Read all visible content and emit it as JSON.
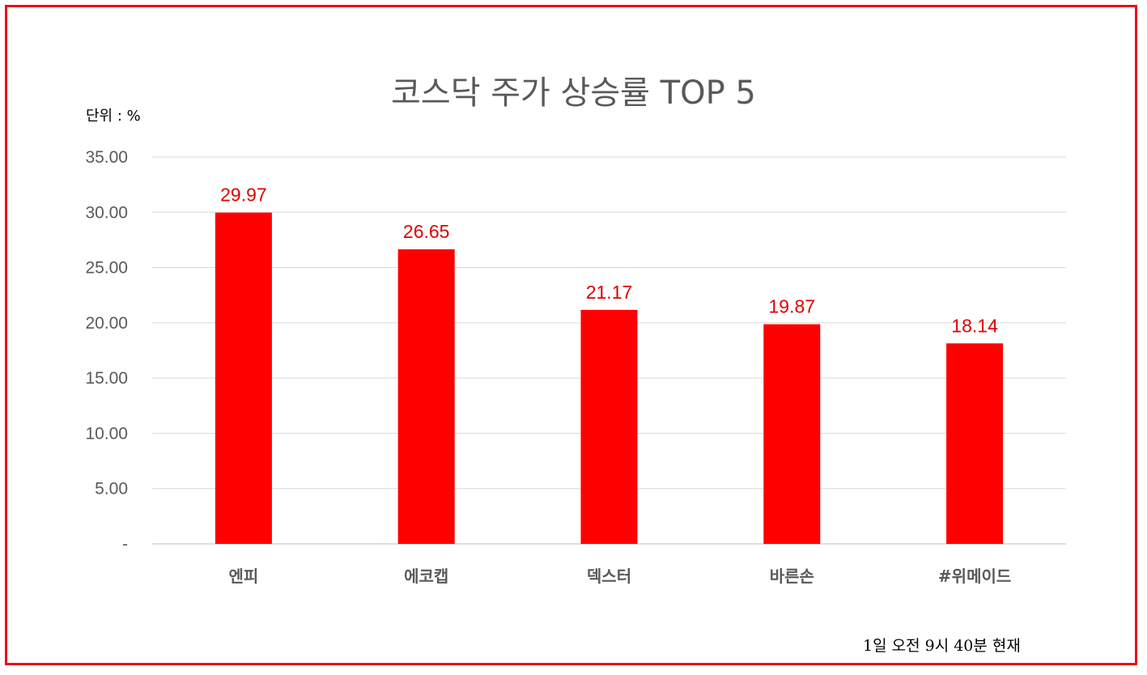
{
  "chart_data": {
    "type": "bar",
    "title": "코스닥 주가 상승률 TOP 5",
    "unit_label": "단위 : %",
    "footnote": "1일  오전 9시 40분 현재",
    "categories": [
      "엔피",
      "에코캡",
      "덱스터",
      "바른손",
      "#위메이드"
    ],
    "values": [
      29.97,
      26.65,
      21.17,
      19.87,
      18.14
    ],
    "data_labels": [
      "29.97",
      "26.65",
      "21.17",
      "19.87",
      "18.14"
    ],
    "ylim": [
      0,
      35
    ],
    "yticks": [
      0,
      5,
      10,
      15,
      20,
      25,
      30,
      35
    ],
    "ytick_labels": [
      "-",
      "5.00",
      "10.00",
      "15.00",
      "20.00",
      "25.00",
      "30.00",
      "35.00"
    ],
    "grid": true,
    "legend": "none",
    "bar_color": "#ff0000",
    "label_color": "#e00000",
    "frame_color": "#e8101a"
  }
}
